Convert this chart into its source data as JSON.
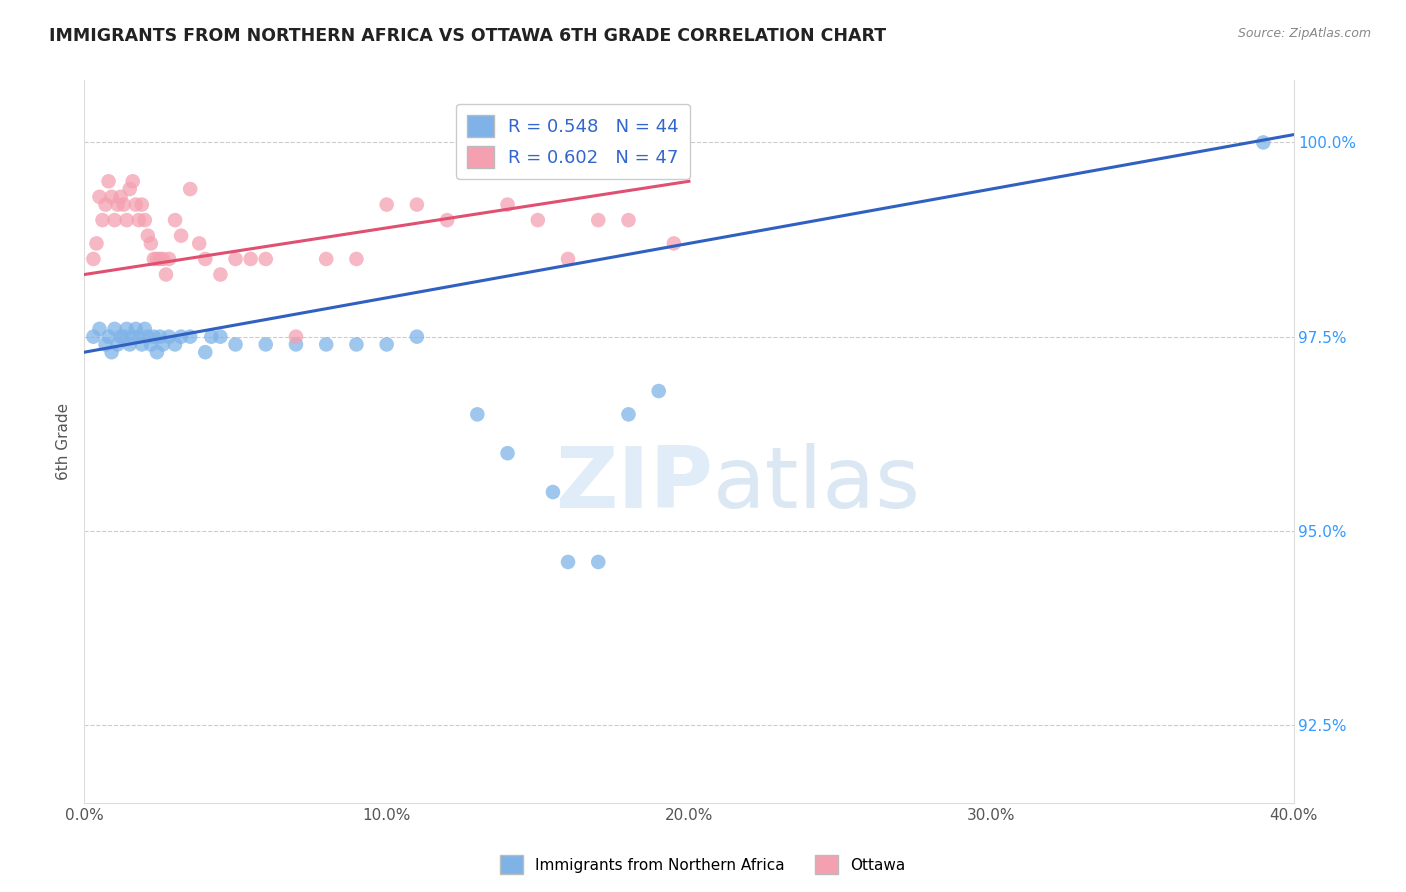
{
  "title": "IMMIGRANTS FROM NORTHERN AFRICA VS OTTAWA 6TH GRADE CORRELATION CHART",
  "source": "Source: ZipAtlas.com",
  "ylabel": "6th Grade",
  "xmin": 0.0,
  "xmax": 40.0,
  "ymin": 91.5,
  "ymax": 100.8,
  "yticks": [
    92.5,
    95.0,
    97.5,
    100.0
  ],
  "xticks": [
    0.0,
    10.0,
    20.0,
    30.0,
    40.0
  ],
  "blue_color": "#7fb3e8",
  "pink_color": "#f4a0b0",
  "blue_line_color": "#3060c0",
  "pink_line_color": "#e05070",
  "legend_blue_R": "R = 0.548",
  "legend_blue_N": "N = 44",
  "legend_pink_R": "R = 0.602",
  "legend_pink_N": "N = 47",
  "watermark_zip": "ZIP",
  "watermark_atlas": "atlas",
  "blue_trend_x": [
    0.0,
    40.0
  ],
  "blue_trend_y": [
    97.3,
    100.1
  ],
  "pink_trend_x": [
    0.0,
    20.0
  ],
  "pink_trend_y": [
    98.3,
    99.5
  ],
  "blue_dots_x": [
    0.3,
    0.5,
    0.7,
    0.8,
    0.9,
    1.0,
    1.1,
    1.2,
    1.3,
    1.4,
    1.5,
    1.6,
    1.7,
    1.8,
    1.9,
    2.0,
    2.1,
    2.2,
    2.3,
    2.4,
    2.5,
    2.6,
    2.8,
    3.0,
    3.2,
    3.5,
    4.0,
    4.2,
    4.5,
    5.0,
    6.0,
    7.0,
    8.0,
    9.0,
    10.0,
    11.0,
    13.0,
    14.0,
    15.5,
    16.0,
    17.0,
    18.0,
    19.0,
    39.0
  ],
  "blue_dots_y": [
    97.5,
    97.6,
    97.4,
    97.5,
    97.3,
    97.6,
    97.4,
    97.5,
    97.5,
    97.6,
    97.4,
    97.5,
    97.6,
    97.5,
    97.4,
    97.6,
    97.5,
    97.4,
    97.5,
    97.3,
    97.5,
    97.4,
    97.5,
    97.4,
    97.5,
    97.5,
    97.3,
    97.5,
    97.5,
    97.4,
    97.4,
    97.4,
    97.4,
    97.4,
    97.4,
    97.5,
    96.5,
    96.0,
    95.5,
    94.6,
    94.6,
    96.5,
    96.8,
    100.0
  ],
  "pink_dots_x": [
    0.3,
    0.4,
    0.5,
    0.6,
    0.7,
    0.8,
    0.9,
    1.0,
    1.1,
    1.2,
    1.3,
    1.4,
    1.5,
    1.6,
    1.7,
    1.8,
    1.9,
    2.0,
    2.1,
    2.2,
    2.3,
    2.4,
    2.5,
    2.6,
    2.7,
    2.8,
    3.0,
    3.2,
    3.5,
    3.8,
    4.0,
    4.5,
    5.0,
    5.5,
    6.0,
    7.0,
    8.0,
    9.0,
    10.0,
    11.0,
    12.0,
    14.0,
    15.0,
    16.0,
    17.0,
    18.0,
    19.5
  ],
  "pink_dots_y": [
    98.5,
    98.7,
    99.3,
    99.0,
    99.2,
    99.5,
    99.3,
    99.0,
    99.2,
    99.3,
    99.2,
    99.0,
    99.4,
    99.5,
    99.2,
    99.0,
    99.2,
    99.0,
    98.8,
    98.7,
    98.5,
    98.5,
    98.5,
    98.5,
    98.3,
    98.5,
    99.0,
    98.8,
    99.4,
    98.7,
    98.5,
    98.3,
    98.5,
    98.5,
    98.5,
    97.5,
    98.5,
    98.5,
    99.2,
    99.2,
    99.0,
    99.2,
    99.0,
    98.5,
    99.0,
    99.0,
    98.7
  ]
}
